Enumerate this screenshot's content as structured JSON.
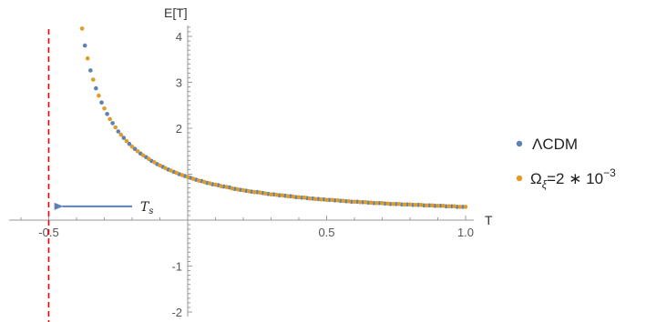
{
  "chart_data": {
    "type": "scatter",
    "xlabel": "T",
    "ylabel": "E[T]",
    "xlim": [
      -0.65,
      1.03
    ],
    "ylim": [
      -2.05,
      4.25
    ],
    "x_ticks": [
      -0.5,
      0.5,
      1.0
    ],
    "x_tick_labels": [
      "-0.5",
      "0.5",
      "1.0"
    ],
    "y_ticks": [
      -2,
      -1,
      2,
      3,
      4
    ],
    "y_tick_labels": [
      "-2",
      "-1",
      "2",
      "3",
      "4"
    ],
    "grid": false,
    "legend_position": "right",
    "series": [
      {
        "name": "ΛCDM",
        "color": "#5e81b5",
        "x": [
          -0.37,
          -0.35,
          -0.33,
          -0.31,
          -0.29,
          -0.27,
          -0.25,
          -0.23,
          -0.21,
          -0.19,
          -0.17,
          -0.15,
          -0.13,
          -0.11,
          -0.09,
          -0.07,
          -0.05,
          -0.03,
          -0.01,
          0.01,
          0.03,
          0.05,
          0.07,
          0.09,
          0.11,
          0.13,
          0.15,
          0.17,
          0.19,
          0.21,
          0.23,
          0.25,
          0.27,
          0.29,
          0.31,
          0.33,
          0.35,
          0.37,
          0.39,
          0.41,
          0.43,
          0.45,
          0.47,
          0.49,
          0.51,
          0.53,
          0.55,
          0.57,
          0.59,
          0.61,
          0.63,
          0.65,
          0.67,
          0.69,
          0.71,
          0.73,
          0.75,
          0.77,
          0.79,
          0.81,
          0.83,
          0.85,
          0.87,
          0.89,
          0.91,
          0.93,
          0.95,
          0.97,
          0.99
        ],
        "y": [
          3.8,
          3.26,
          2.87,
          2.56,
          2.31,
          2.11,
          1.93,
          1.79,
          1.66,
          1.55,
          1.45,
          1.37,
          1.29,
          1.22,
          1.16,
          1.1,
          1.05,
          1.0,
          0.96,
          0.92,
          0.88,
          0.85,
          0.81,
          0.78,
          0.76,
          0.73,
          0.71,
          0.68,
          0.66,
          0.64,
          0.62,
          0.61,
          0.59,
          0.57,
          0.56,
          0.54,
          0.53,
          0.52,
          0.5,
          0.49,
          0.48,
          0.47,
          0.46,
          0.45,
          0.44,
          0.43,
          0.42,
          0.41,
          0.4,
          0.4,
          0.39,
          0.38,
          0.37,
          0.37,
          0.36,
          0.35,
          0.35,
          0.34,
          0.34,
          0.33,
          0.33,
          0.32,
          0.32,
          0.31,
          0.31,
          0.3,
          0.3,
          0.29,
          0.29
        ]
      },
      {
        "name": "Ω_ξ=2∗10^-3",
        "color": "#e19c24",
        "x": [
          -0.38,
          -0.36,
          -0.34,
          -0.32,
          -0.3,
          -0.28,
          -0.26,
          -0.24,
          -0.22,
          -0.2,
          -0.18,
          -0.16,
          -0.14,
          -0.12,
          -0.1,
          -0.08,
          -0.06,
          -0.04,
          -0.02,
          0.0,
          0.02,
          0.04,
          0.06,
          0.08,
          0.1,
          0.12,
          0.14,
          0.16,
          0.18,
          0.2,
          0.22,
          0.24,
          0.26,
          0.28,
          0.3,
          0.32,
          0.34,
          0.36,
          0.38,
          0.4,
          0.42,
          0.44,
          0.46,
          0.48,
          0.5,
          0.52,
          0.54,
          0.56,
          0.58,
          0.6,
          0.62,
          0.64,
          0.66,
          0.68,
          0.7,
          0.72,
          0.74,
          0.76,
          0.78,
          0.8,
          0.82,
          0.84,
          0.86,
          0.88,
          0.9,
          0.92,
          0.94,
          0.96,
          0.98,
          1.0
        ],
        "y": [
          4.17,
          3.52,
          3.06,
          2.71,
          2.43,
          2.2,
          2.02,
          1.86,
          1.72,
          1.6,
          1.5,
          1.41,
          1.33,
          1.26,
          1.19,
          1.13,
          1.08,
          1.03,
          0.98,
          0.94,
          0.9,
          0.86,
          0.83,
          0.8,
          0.77,
          0.74,
          0.72,
          0.69,
          0.67,
          0.65,
          0.63,
          0.61,
          0.6,
          0.58,
          0.56,
          0.55,
          0.54,
          0.52,
          0.51,
          0.5,
          0.49,
          0.47,
          0.46,
          0.45,
          0.44,
          0.44,
          0.43,
          0.42,
          0.41,
          0.4,
          0.39,
          0.39,
          0.38,
          0.37,
          0.37,
          0.36,
          0.35,
          0.35,
          0.34,
          0.34,
          0.33,
          0.33,
          0.32,
          0.32,
          0.31,
          0.31,
          0.3,
          0.3,
          0.29,
          0.29
        ]
      }
    ],
    "vertical_line": {
      "x": -0.5,
      "style": "dashed",
      "color": "#ff0000"
    },
    "annotation": {
      "text": "T",
      "subscript": "s",
      "arrow_from": [
        -0.2,
        0.3
      ],
      "arrow_to": [
        -0.48,
        0.3
      ],
      "arrow_color": "#5e81b5"
    }
  }
}
